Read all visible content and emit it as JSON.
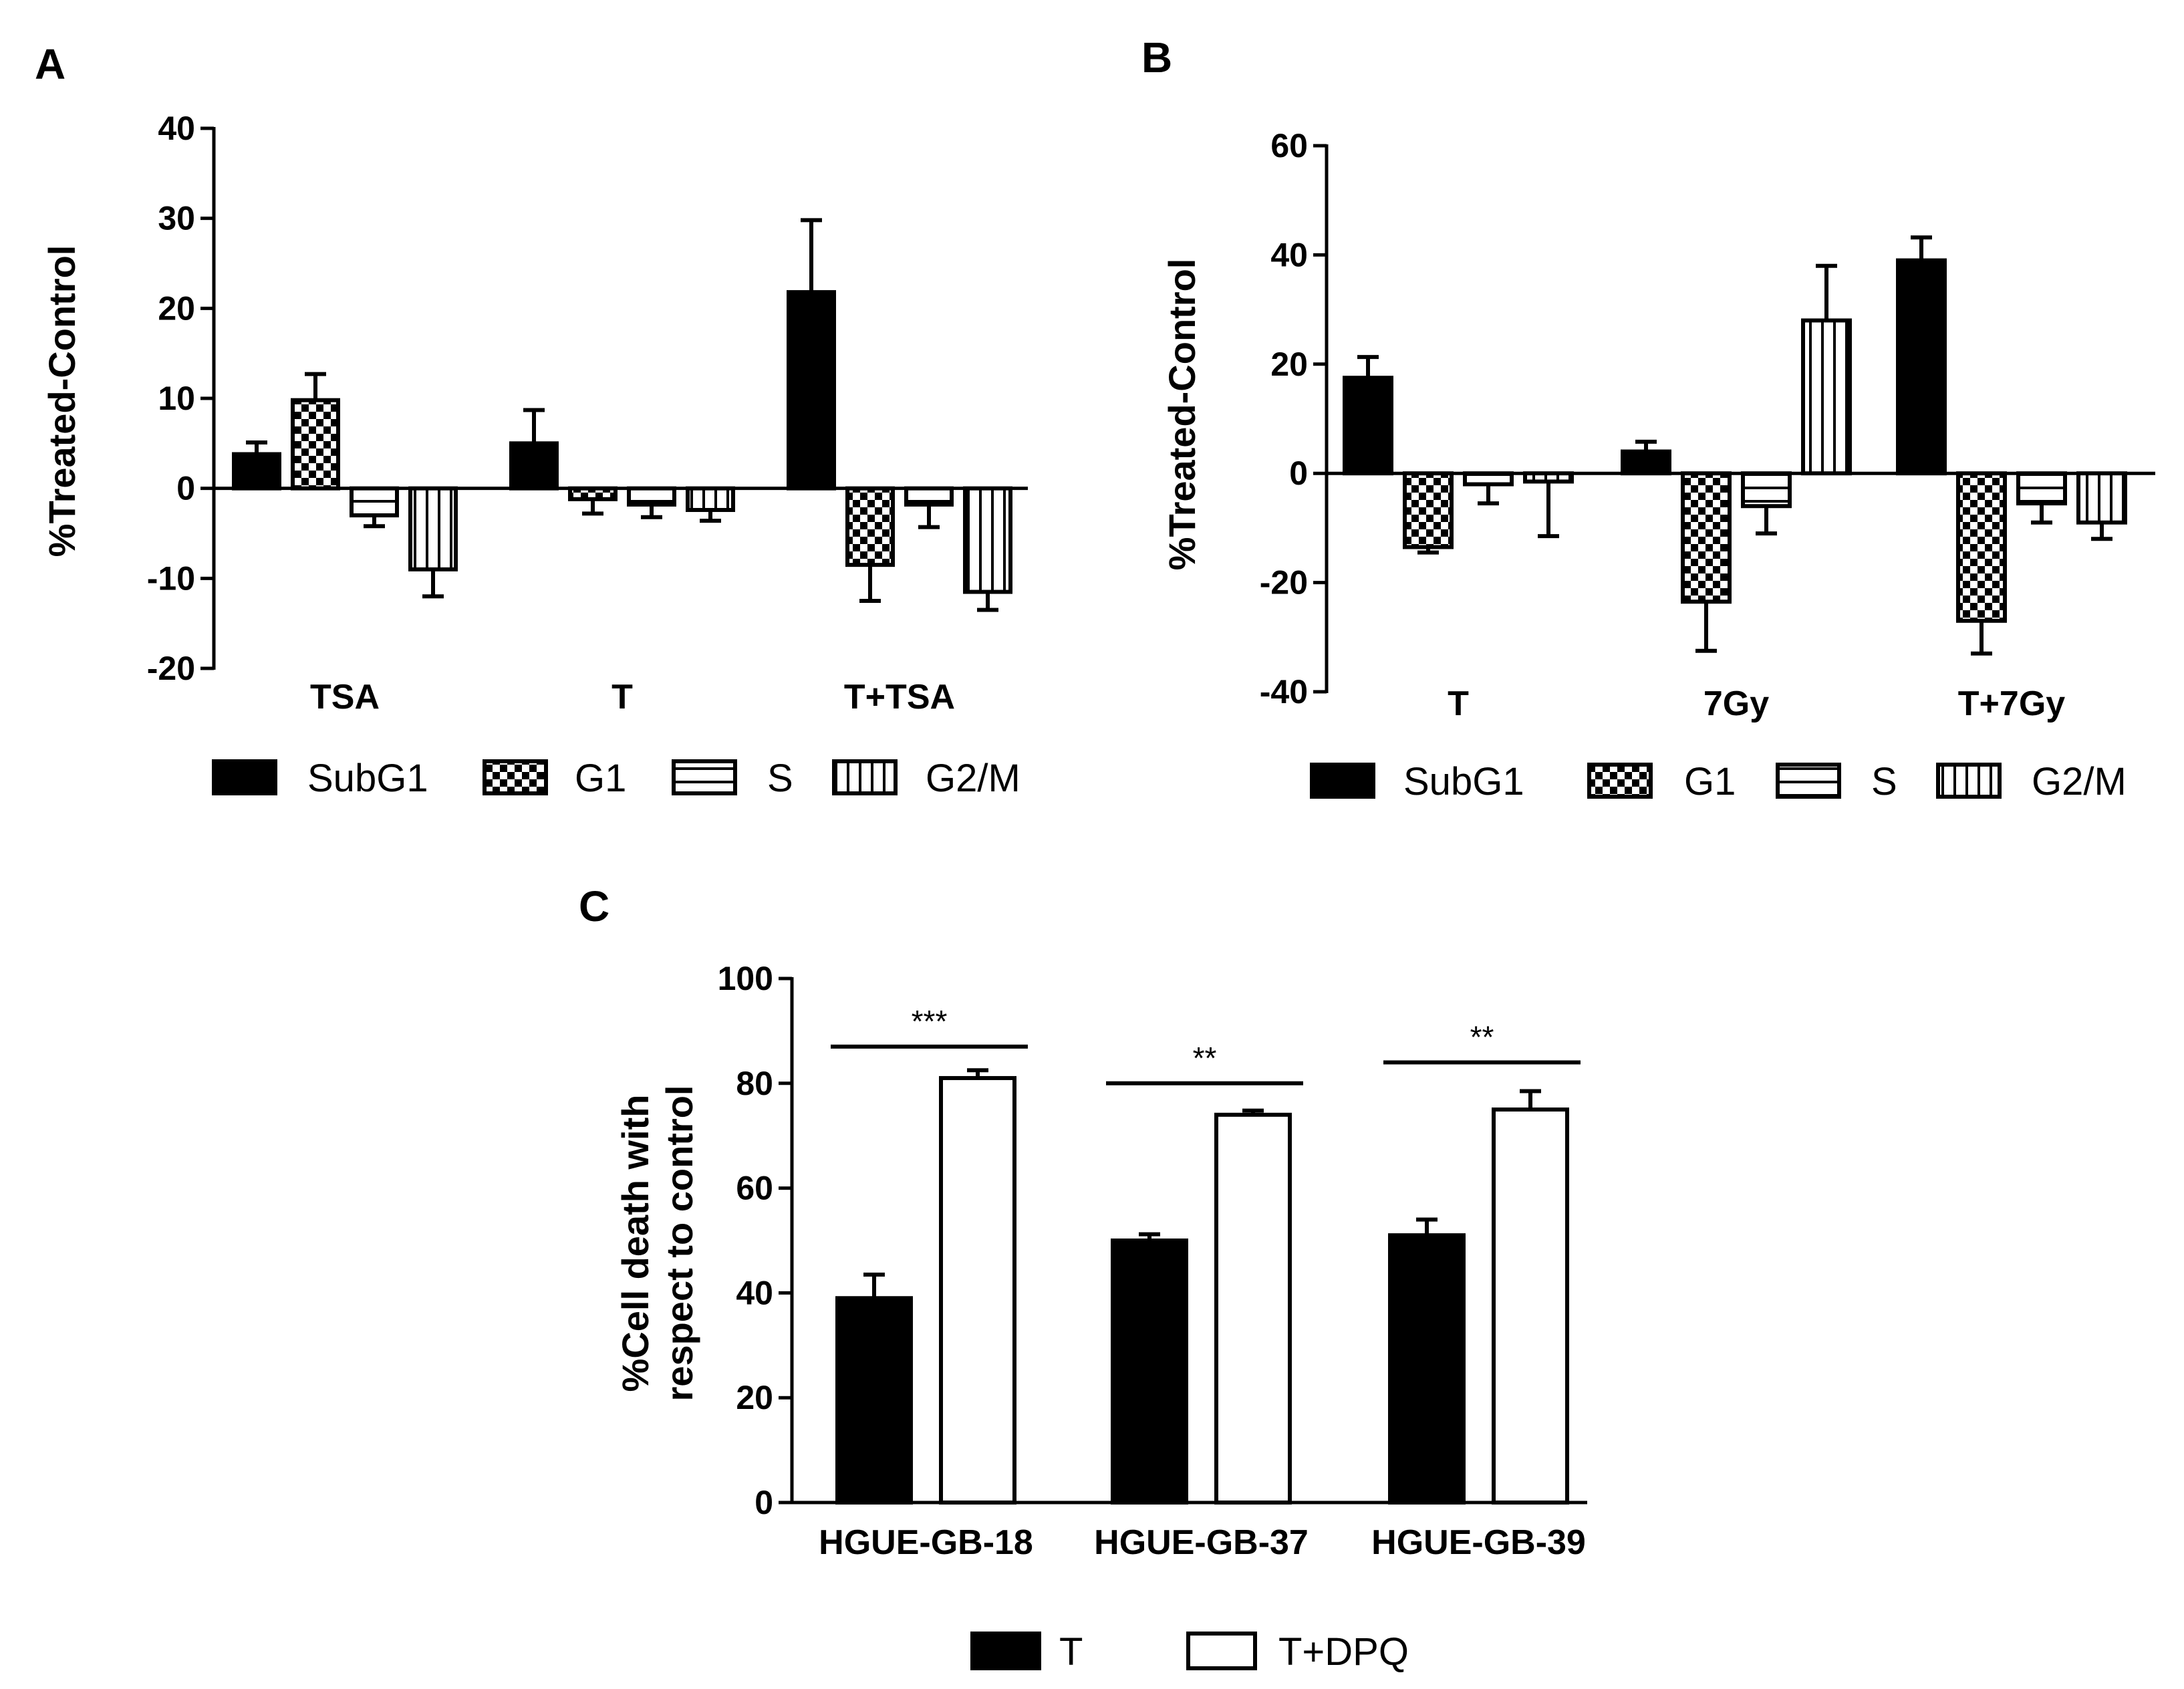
{
  "chart_data": [
    {
      "id": "A",
      "type": "bar",
      "panel_label": "A",
      "ylabel": "%Treated-Control",
      "ylim": [
        -20,
        40
      ],
      "yticks": [
        -20,
        -10,
        0,
        10,
        20,
        30,
        40
      ],
      "categories": [
        "TSA",
        "T",
        "T+TSA"
      ],
      "legend": {
        "position": "bottom",
        "entries": [
          {
            "name": "SubG1",
            "pattern": "solid"
          },
          {
            "name": "G1",
            "pattern": "checker"
          },
          {
            "name": "S",
            "pattern": "hstripe"
          },
          {
            "name": "G2/M",
            "pattern": "vstripe"
          }
        ]
      },
      "series": [
        {
          "name": "SubG1",
          "pattern": "solid",
          "values": [
            3.8,
            5.0,
            21.8
          ],
          "errors": [
            1.3,
            3.7,
            8.0
          ]
        },
        {
          "name": "G1",
          "pattern": "checker",
          "values": [
            9.8,
            -1.2,
            -8.5
          ],
          "errors": [
            2.9,
            1.6,
            4.0
          ]
        },
        {
          "name": "S",
          "pattern": "hstripe",
          "values": [
            -3.0,
            -1.8,
            -1.8
          ],
          "errors": [
            1.2,
            1.4,
            2.5
          ]
        },
        {
          "name": "G2/M",
          "pattern": "vstripe",
          "values": [
            -9.0,
            -2.4,
            -11.5
          ],
          "errors": [
            3.0,
            1.2,
            2.0
          ]
        }
      ]
    },
    {
      "id": "B",
      "type": "bar",
      "panel_label": "B",
      "ylabel": "%Treated-Control",
      "ylim": [
        -40,
        60
      ],
      "yticks": [
        -40,
        -20,
        0,
        20,
        40,
        60
      ],
      "categories": [
        "T",
        "7Gy",
        "T+7Gy"
      ],
      "legend": {
        "position": "bottom",
        "entries": [
          {
            "name": "SubG1",
            "pattern": "solid"
          },
          {
            "name": "G1",
            "pattern": "checker"
          },
          {
            "name": "S",
            "pattern": "hstripe"
          },
          {
            "name": "G2/M",
            "pattern": "vstripe"
          }
        ]
      },
      "series": [
        {
          "name": "SubG1",
          "pattern": "solid",
          "values": [
            17.5,
            4.0,
            39.0
          ],
          "errors": [
            3.8,
            1.8,
            4.2
          ]
        },
        {
          "name": "G1",
          "pattern": "checker",
          "values": [
            -13.5,
            -23.5,
            -27.0
          ],
          "errors": [
            1.0,
            9.0,
            6.0
          ]
        },
        {
          "name": "S",
          "pattern": "hstripe",
          "values": [
            -2.0,
            -6.0,
            -5.5
          ],
          "errors": [
            3.5,
            5.0,
            3.5
          ]
        },
        {
          "name": "G2/M",
          "pattern": "vstripe",
          "values": [
            -1.5,
            28.0,
            -9.0
          ],
          "errors": [
            10.0,
            10.0,
            3.0
          ]
        }
      ]
    },
    {
      "id": "C",
      "type": "bar",
      "panel_label": "C",
      "ylabel_lines": [
        "%Cell death with",
        "respect to control"
      ],
      "ylim": [
        0,
        100
      ],
      "yticks": [
        0,
        20,
        40,
        60,
        80,
        100
      ],
      "categories": [
        "HGUE-GB-18",
        "HGUE-GB-37",
        "HGUE-GB-39"
      ],
      "legend": {
        "position": "bottom",
        "entries": [
          {
            "name": "T",
            "pattern": "solid"
          },
          {
            "name": "T+DPQ",
            "pattern": "white"
          }
        ]
      },
      "series": [
        {
          "name": "T",
          "pattern": "solid",
          "values": [
            39,
            50,
            51
          ],
          "errors": [
            4.5,
            1.2,
            3.0
          ]
        },
        {
          "name": "T+DPQ",
          "pattern": "white",
          "values": [
            81,
            74,
            75
          ],
          "errors": [
            1.5,
            0.8,
            3.5
          ]
        }
      ],
      "significance": [
        {
          "label": "***",
          "y": 87
        },
        {
          "label": "**",
          "y": 80
        },
        {
          "label": "**",
          "y": 84
        }
      ]
    }
  ]
}
